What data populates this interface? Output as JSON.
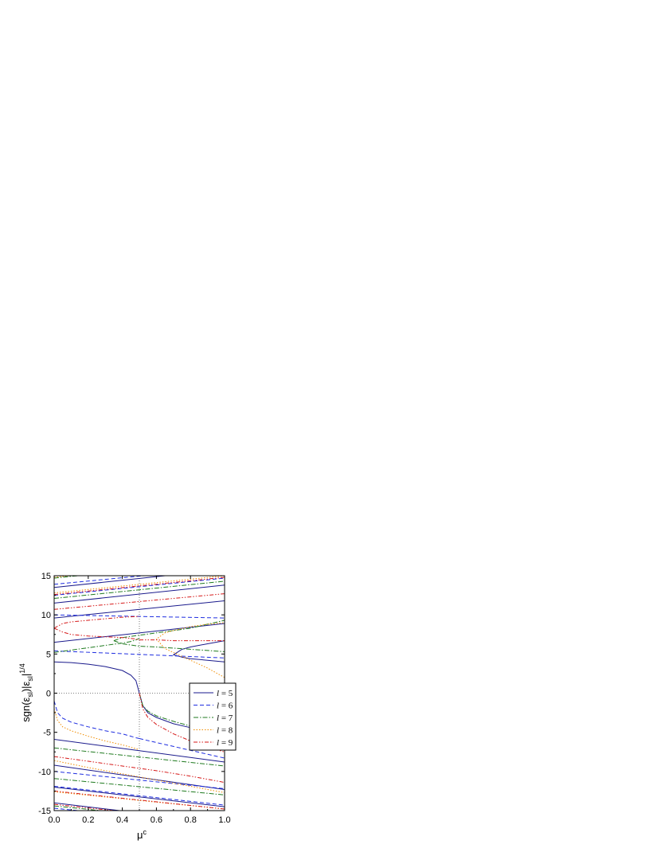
{
  "chart_data": {
    "type": "line",
    "xlabel": "μ",
    "xlabel_sup": "c",
    "ylabel_parts": {
      "p1": "sgn(ε",
      "s1": "sl",
      "p2": ")|ε",
      "s2": "sl",
      "p3": "|",
      "sup": "1/4"
    },
    "xlim": [
      0,
      1
    ],
    "ylim": [
      -15,
      15
    ],
    "xticks": [
      "0.0",
      "0.2",
      "0.4",
      "0.6",
      "0.8",
      "1.0"
    ],
    "yticks": [
      "-15",
      "-10",
      "-5",
      "0",
      "5",
      "10",
      "15"
    ],
    "reference_lines": {
      "x": 0.5,
      "y": 0,
      "style": "dotted"
    },
    "legend": {
      "position": "right-middle",
      "entries": [
        {
          "name": "l = 5",
          "italic": "l",
          "rest": " = 5",
          "color": "#1a1a8c",
          "dash": "solid"
        },
        {
          "name": "l = 6",
          "italic": "l",
          "rest": " = 6",
          "color": "#1f2ee0",
          "dash": "dashed"
        },
        {
          "name": "l = 7",
          "italic": "l",
          "rest": " = 7",
          "color": "#1f7a1f",
          "dash": "dash-dot"
        },
        {
          "name": "l = 8",
          "italic": "l",
          "rest": " = 8",
          "color": "#f08c00",
          "dash": "dotted"
        },
        {
          "name": "l = 9",
          "italic": "l",
          "rest": " = 9",
          "color": "#d61a1a",
          "dash": "dash-dot-dot"
        }
      ]
    },
    "series": [
      {
        "name": "l = 5",
        "segments": [
          {
            "x": [
              0.0,
              0.1,
              0.2,
              0.3,
              0.4,
              0.45,
              0.48,
              0.5
            ],
            "y": [
              4.0,
              3.9,
              3.7,
              3.4,
              2.9,
              2.3,
              1.6,
              0.0
            ]
          },
          {
            "x": [
              0.5,
              0.52,
              0.55,
              0.6,
              0.7,
              0.8,
              0.9,
              1.0
            ],
            "y": [
              0.0,
              -1.6,
              -2.5,
              -3.1,
              -3.9,
              -4.4,
              -4.8,
              -5.2
            ]
          },
          {
            "x": [
              0.0,
              1.0
            ],
            "y": [
              6.5,
              8.9
            ]
          },
          {
            "x": [
              0.0,
              1.0
            ],
            "y": [
              9.6,
              11.8
            ]
          },
          {
            "x": [
              0.0,
              1.0
            ],
            "y": [
              11.5,
              13.8
            ]
          },
          {
            "x": [
              0.0,
              1.0
            ],
            "y": [
              13.5,
              15.8
            ]
          },
          {
            "x": [
              0.0,
              1.0
            ],
            "y": [
              -5.9,
              -8.8
            ]
          },
          {
            "x": [
              0.0,
              1.0
            ],
            "y": [
              -9.2,
              -12.3
            ]
          },
          {
            "x": [
              0.0,
              1.0
            ],
            "y": [
              -12.0,
              -14.5
            ]
          },
          {
            "x": [
              0.0,
              1.0
            ],
            "y": [
              -14.0,
              -16.6
            ]
          },
          {
            "x": [
              1.0,
              0.9,
              0.8,
              0.75,
              0.7,
              0.75,
              0.8,
              0.9,
              1.0
            ],
            "y": [
              4.0,
              4.2,
              4.4,
              4.6,
              4.9,
              5.6,
              5.9,
              6.3,
              6.7
            ]
          }
        ]
      },
      {
        "name": "l = 6",
        "segments": [
          {
            "x": [
              0.0,
              0.02,
              0.05,
              0.1,
              0.2,
              0.3,
              0.4,
              0.45,
              0.48,
              0.5
            ],
            "y": [
              -1.0,
              -2.5,
              -3.2,
              -3.7,
              -4.3,
              -4.8,
              -5.2,
              -5.5,
              -5.7,
              -5.8
            ]
          },
          {
            "x": [
              0.5,
              0.6,
              0.7,
              0.8,
              0.9,
              1.0
            ],
            "y": [
              -5.8,
              -6.3,
              -6.8,
              -7.3,
              -7.8,
              -8.3
            ]
          },
          {
            "x": [
              0.0,
              1.0
            ],
            "y": [
              5.4,
              4.5
            ]
          },
          {
            "x": [
              0.0,
              1.0
            ],
            "y": [
              10.0,
              9.6
            ]
          },
          {
            "x": [
              0.0,
              1.0
            ],
            "y": [
              12.5,
              14.7
            ]
          },
          {
            "x": [
              0.0,
              1.0
            ],
            "y": [
              13.9,
              16.0
            ]
          },
          {
            "x": [
              0.0,
              1.0
            ],
            "y": [
              -10.0,
              -12.2
            ]
          },
          {
            "x": [
              0.0,
              1.0
            ],
            "y": [
              -11.9,
              -14.3
            ]
          },
          {
            "x": [
              0.0,
              1.0
            ],
            "y": [
              -14.7,
              -16.9
            ]
          }
        ]
      },
      {
        "name": "l = 7",
        "segments": [
          {
            "x": [
              0.0,
              0.1,
              0.2,
              0.3,
              0.4,
              0.45,
              0.48,
              0.5
            ],
            "y": [
              5.2,
              5.5,
              5.8,
              6.1,
              6.4,
              6.6,
              6.8,
              7.0
            ]
          },
          {
            "x": [
              0.5,
              0.52,
              0.55,
              0.6,
              0.7,
              0.8,
              0.9,
              1.0
            ],
            "y": [
              0.0,
              -1.6,
              -2.3,
              -2.9,
              -3.6,
              -4.2,
              -4.7,
              -5.1
            ]
          },
          {
            "x": [
              0.35,
              0.4,
              0.5,
              0.6,
              0.8,
              1.0
            ],
            "y": [
              6.7,
              6.3,
              6.0,
              5.9,
              5.6,
              5.3
            ]
          },
          {
            "x": [
              0.35,
              0.4,
              0.5,
              0.6,
              0.8,
              1.0
            ],
            "y": [
              6.7,
              7.1,
              7.4,
              7.7,
              8.3,
              9.3
            ]
          },
          {
            "x": [
              0.0,
              1.0
            ],
            "y": [
              12.1,
              14.3
            ]
          },
          {
            "x": [
              0.0,
              1.0
            ],
            "y": [
              14.7,
              16.9
            ]
          },
          {
            "x": [
              0.0,
              1.0
            ],
            "y": [
              -7.0,
              -9.3
            ]
          },
          {
            "x": [
              0.0,
              1.0
            ],
            "y": [
              -10.9,
              -13.0
            ]
          },
          {
            "x": [
              0.0,
              1.0
            ],
            "y": [
              -14.4,
              -16.6
            ]
          }
        ]
      },
      {
        "name": "l = 8",
        "segments": [
          {
            "x": [
              0.0,
              0.02,
              0.05,
              0.1,
              0.2,
              0.3,
              0.4,
              0.45,
              0.48,
              0.5
            ],
            "y": [
              -2.0,
              -3.5,
              -4.3,
              -4.8,
              -5.5,
              -6.1,
              -6.6,
              -6.9,
              -7.1,
              -7.2
            ]
          },
          {
            "x": [
              0.0,
              0.2,
              0.4,
              0.5,
              0.6,
              0.8,
              1.0
            ],
            "y": [
              -8.6,
              -9.5,
              -10.3,
              -10.7,
              -11.1,
              -11.9,
              -12.7
            ]
          },
          {
            "x": [
              1.0,
              0.9,
              0.8,
              0.7,
              0.65,
              0.6,
              0.65,
              0.7,
              0.8,
              0.9,
              1.0
            ],
            "y": [
              2.0,
              3.2,
              4.2,
              5.2,
              5.7,
              6.9,
              7.7,
              8.0,
              8.5,
              8.8,
              9.0
            ]
          },
          {
            "x": [
              0.0,
              1.0
            ],
            "y": [
              12.8,
              15.0
            ]
          },
          {
            "x": [
              0.0,
              1.0
            ],
            "y": [
              14.8,
              17.0
            ]
          },
          {
            "x": [
              0.0,
              1.0
            ],
            "y": [
              -12.6,
              -14.8
            ]
          }
        ]
      },
      {
        "name": "l = 9",
        "segments": [
          {
            "x": [
              0.0,
              0.05,
              0.1,
              0.2,
              0.3,
              0.4,
              0.45,
              0.48,
              0.5
            ],
            "y": [
              8.3,
              7.8,
              7.5,
              7.3,
              7.2,
              7.1,
              7.0,
              6.9,
              6.8
            ]
          },
          {
            "x": [
              0.5,
              0.6,
              0.7,
              0.8,
              0.9,
              1.0
            ],
            "y": [
              6.8,
              6.8,
              6.7,
              6.7,
              6.7,
              6.7
            ]
          },
          {
            "x": [
              0.0,
              0.05,
              0.1,
              0.2,
              0.3,
              0.4,
              0.5
            ],
            "y": [
              8.3,
              8.9,
              9.1,
              9.3,
              9.5,
              9.7,
              9.8
            ]
          },
          {
            "x": [
              0.0,
              1.0
            ],
            "y": [
              10.7,
              12.7
            ]
          },
          {
            "x": [
              0.0,
              1.0
            ],
            "y": [
              12.6,
              14.8
            ]
          },
          {
            "x": [
              0.5,
              0.52,
              0.55,
              0.6,
              0.7,
              0.8,
              0.9,
              1.0
            ],
            "y": [
              0.0,
              -2.0,
              -3.1,
              -4.0,
              -5.2,
              -6.1,
              -6.9,
              -7.5
            ]
          },
          {
            "x": [
              0.0,
              0.2,
              0.4,
              0.5,
              0.6,
              0.8,
              1.0
            ],
            "y": [
              -8.1,
              -8.7,
              -9.3,
              -9.6,
              -9.9,
              -10.6,
              -11.4
            ]
          },
          {
            "x": [
              0.0,
              1.0
            ],
            "y": [
              -12.5,
              -14.8
            ]
          },
          {
            "x": [
              0.0,
              1.0
            ],
            "y": [
              -14.2,
              -16.5
            ]
          }
        ]
      }
    ]
  }
}
